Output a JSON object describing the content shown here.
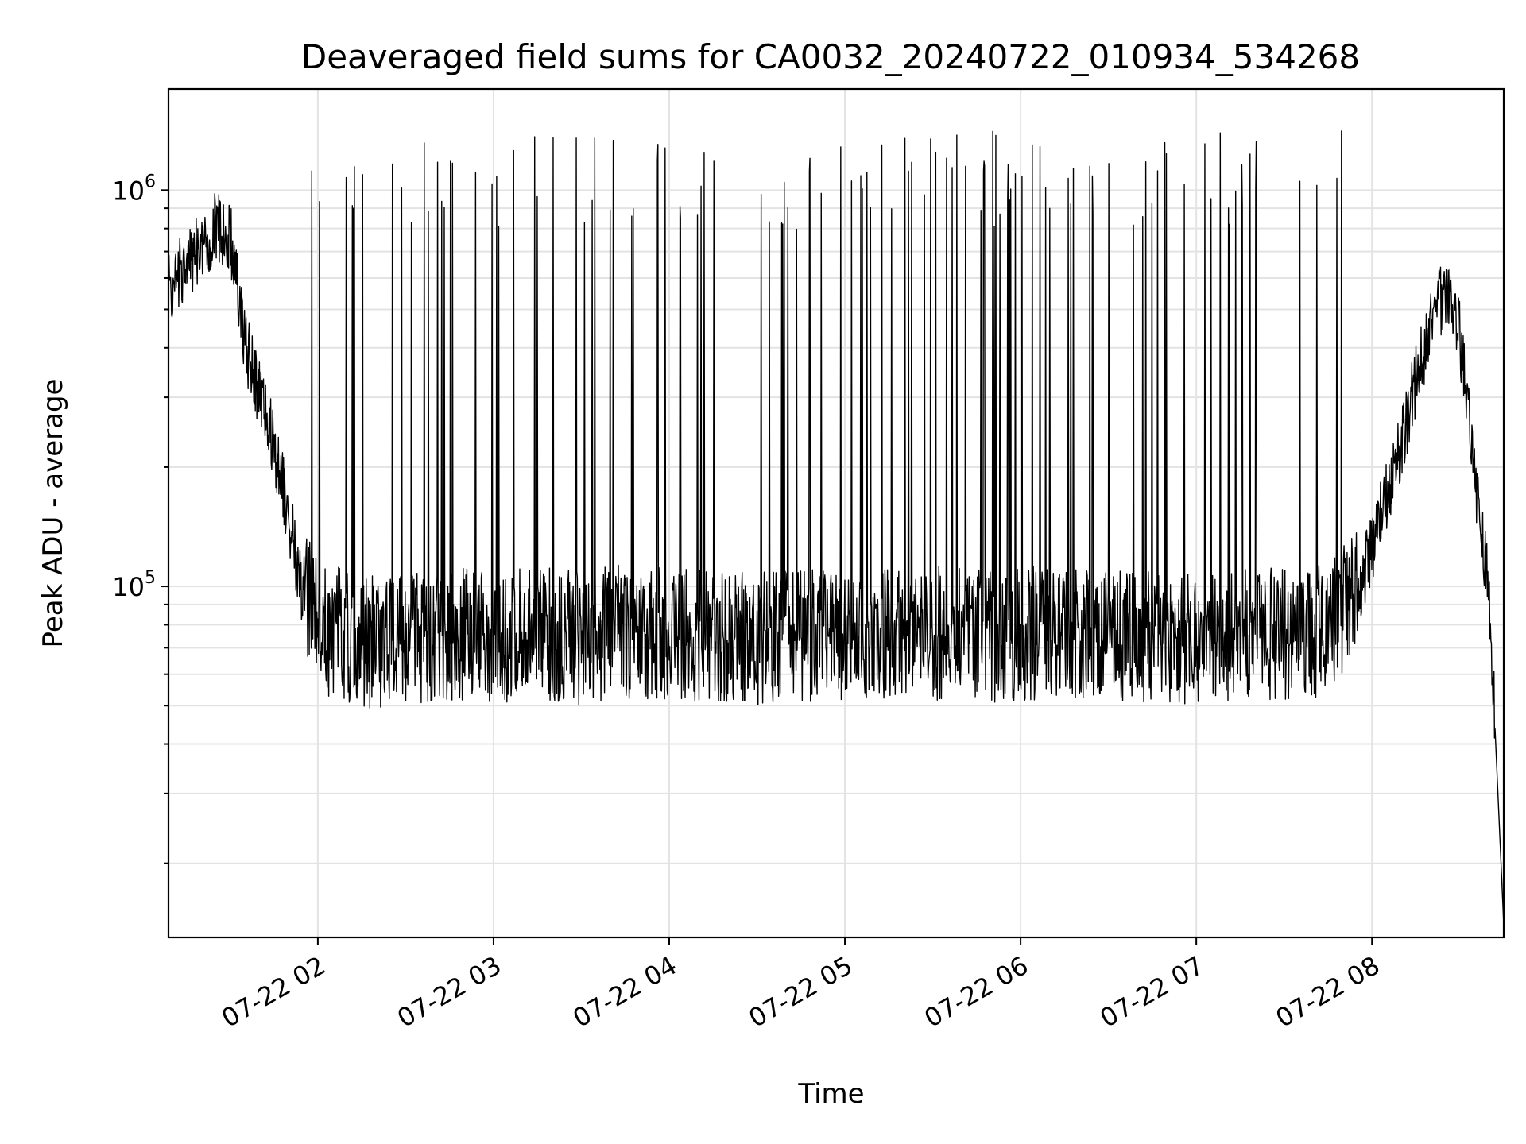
{
  "chart_data": {
    "type": "line",
    "title": "Deaveraged field sums for CA0032_20240722_010934_534268",
    "xlabel": "Time",
    "ylabel": "Peak ADU - average",
    "yscale": "log",
    "grid": true,
    "ylim": [
      13000,
      1800000
    ],
    "xlim": [
      "07-22 01:09",
      "07-22 08:45"
    ],
    "x_ticks": [
      "07-22 02",
      "07-22 03",
      "07-22 04",
      "07-22 05",
      "07-22 06",
      "07-22 07",
      "07-22 08"
    ],
    "y_ticks": [
      {
        "base": "10",
        "exp": "5",
        "value": 100000
      },
      {
        "base": "10",
        "exp": "6",
        "value": 1000000
      }
    ],
    "line_color": "#000000",
    "series": [
      {
        "x": [
          "07-22 01:09",
          "07-22 01:15",
          "07-22 01:20",
          "07-22 01:25",
          "07-22 01:30",
          "07-22 01:35",
          "07-22 01:40",
          "07-22 01:45",
          "07-22 01:50",
          "07-22 01:55",
          "07-22 02:00",
          "07-22 02:10",
          "07-22 02:20",
          "07-22 02:30",
          "07-22 02:45",
          "07-22 03:00",
          "07-22 03:15",
          "07-22 03:30",
          "07-22 03:45",
          "07-22 04:00",
          "07-22 04:15",
          "07-22 04:30",
          "07-22 04:45",
          "07-22 05:00",
          "07-22 05:15",
          "07-22 05:30",
          "07-22 05:45",
          "07-22 06:00",
          "07-22 06:15",
          "07-22 06:30",
          "07-22 06:45",
          "07-22 07:00",
          "07-22 07:15",
          "07-22 07:30",
          "07-22 07:45",
          "07-22 07:55",
          "07-22 08:00",
          "07-22 08:05",
          "07-22 08:10",
          "07-22 08:15",
          "07-22 08:20",
          "07-22 08:25",
          "07-22 08:30",
          "07-22 08:35",
          "07-22 08:40",
          "07-22 08:45"
        ],
        "values": [
          560000,
          650000,
          720000,
          800000,
          780000,
          420000,
          300000,
          230000,
          150000,
          95000,
          80000,
          75000,
          72000,
          74000,
          76000,
          75000,
          76000,
          74000,
          77000,
          76000,
          75000,
          74000,
          76000,
          75000,
          77000,
          76000,
          75000,
          76000,
          77000,
          76000,
          75000,
          74000,
          75000,
          76000,
          78000,
          95000,
          125000,
          170000,
          230000,
          330000,
          450000,
          560000,
          430000,
          190000,
          95000,
          14000
        ]
      }
    ]
  }
}
